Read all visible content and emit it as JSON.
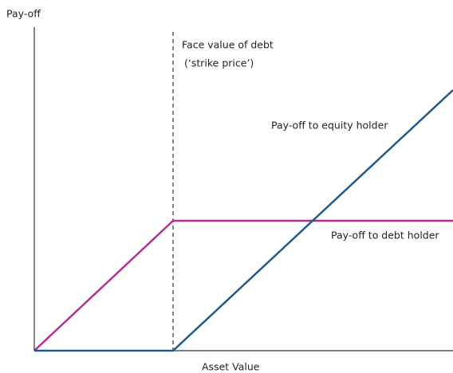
{
  "y_axis_label": "Pay-off",
  "x_axis_label": "Asset Value",
  "strike_label": {
    "line1": "Face value of debt",
    "line2": "(‘strike price’)"
  },
  "series": [
    {
      "name": "Pay-off to equity holder",
      "color": "#1f5a8c"
    },
    {
      "name": "Pay-off to debt holder",
      "color": "#b5308e"
    }
  ]
}
